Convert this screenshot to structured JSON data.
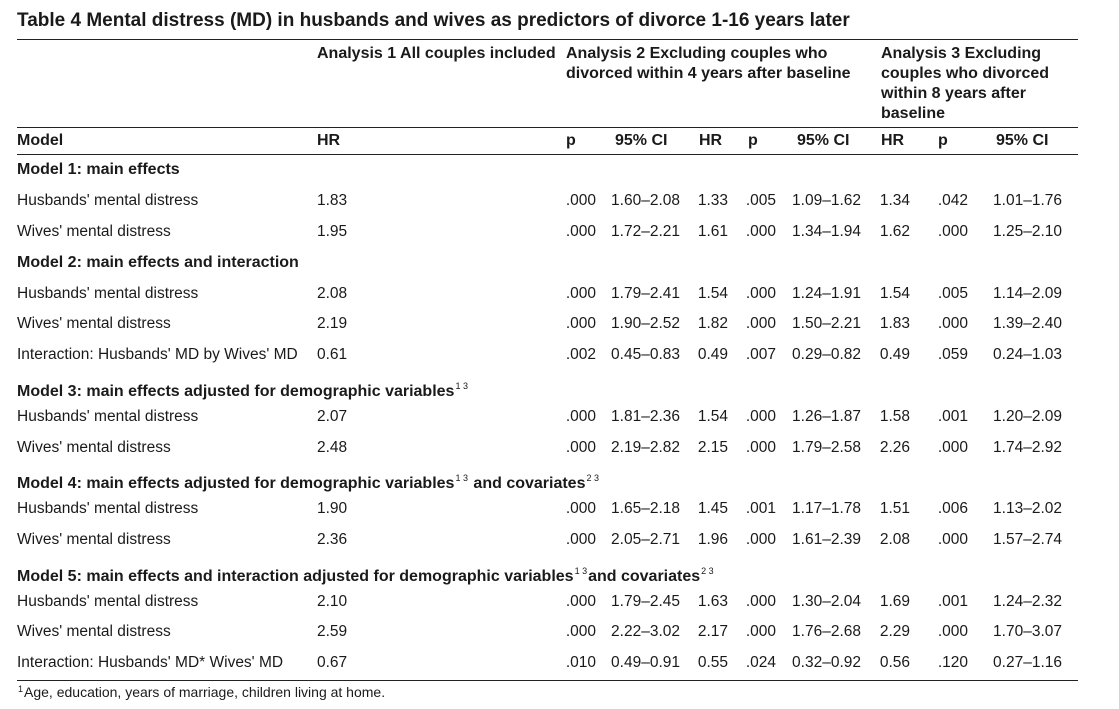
{
  "title": "Table 4 Mental distress (MD) in husbands and wives as predictors of divorce 1-16 years later",
  "analyses": {
    "a1": "Analysis 1 All couples included",
    "a2": [
      "Analysis 2 Excluding couples who",
      "divorced within 4 years after baseline"
    ],
    "a3": [
      "Analysis 3 Excluding",
      "couples who divorced",
      "within 8 years after",
      "baseline"
    ]
  },
  "columns": {
    "model": "Model",
    "hr1": "HR",
    "p1": "p",
    "ci1": "95% CI",
    "hr2": "HR",
    "p2": "p",
    "ci2": "95% CI",
    "hr3": "HR",
    "p3": "p",
    "ci3": "95% CI"
  },
  "groups": [
    {
      "label": "Model 1: main effects"
    },
    {
      "label": "Model 2: main effects and interaction"
    },
    {
      "label": "Model 3: main effects adjusted for demographic variables",
      "sup1": "1 3"
    },
    {
      "label": "Model 4: main effects adjusted for demographic variables",
      "sup1": "1 3",
      "label2": "and covariates",
      "sup2": "2 3"
    },
    {
      "label": "Model 5: main effects and interaction adjusted for demographic variables",
      "sup1": "1 3",
      "label2": "and covariates",
      "sup2": "2 3"
    }
  ],
  "rows": [
    [
      "Husbands' mental distress",
      "1.83",
      ".000",
      "1.60–2.08",
      "1.33",
      ".005",
      "1.09–1.62",
      "1.34",
      ".042",
      "1.01–1.76"
    ],
    [
      "Wives' mental distress",
      "1.95",
      ".000",
      "1.72–2.21",
      "1.61",
      ".000",
      "1.34–1.94",
      "1.62",
      ".000",
      "1.25–2.10"
    ],
    [
      "Husbands' mental distress",
      "2.08",
      ".000",
      "1.79–2.41",
      "1.54",
      ".000",
      "1.24–1.91",
      "1.54",
      ".005",
      "1.14–2.09"
    ],
    [
      "Wives' mental distress",
      "2.19",
      ".000",
      "1.90–2.52",
      "1.82",
      ".000",
      "1.50–2.21",
      "1.83",
      ".000",
      "1.39–2.40"
    ],
    [
      "Interaction: Husbands' MD by Wives' MD",
      "0.61",
      ".002",
      "0.45–0.83",
      "0.49",
      ".007",
      "0.29–0.82",
      "0.49",
      ".059",
      "0.24–1.03"
    ],
    [
      "Husbands' mental distress",
      "2.07",
      ".000",
      "1.81–2.36",
      "1.54",
      ".000",
      "1.26–1.87",
      "1.58",
      ".001",
      "1.20–2.09"
    ],
    [
      "Wives' mental distress",
      "2.48",
      ".000",
      "2.19–2.82",
      "2.15",
      ".000",
      "1.79–2.58",
      "2.26",
      ".000",
      "1.74–2.92"
    ],
    [
      "Husbands' mental distress",
      "1.90",
      ".000",
      "1.65–2.18",
      "1.45",
      ".001",
      "1.17–1.78",
      "1.51",
      ".006",
      "1.13–2.02"
    ],
    [
      "Wives' mental distress",
      "2.36",
      ".000",
      "2.05–2.71",
      "1.96",
      ".000",
      "1.61–2.39",
      "2.08",
      ".000",
      "1.57–2.74"
    ],
    [
      "Husbands' mental distress",
      "2.10",
      ".000",
      "1.79–2.45",
      "1.63",
      ".000",
      "1.30–2.04",
      "1.69",
      ".001",
      "1.24–2.32"
    ],
    [
      "Wives' mental distress",
      "2.59",
      ".000",
      "2.22–3.02",
      "2.17",
      ".000",
      "1.76–2.68",
      "2.29",
      ".000",
      "1.70–3.07"
    ],
    [
      "Interaction: Husbands' MD* Wives' MD",
      "0.67",
      ".010",
      "0.49–0.91",
      "0.55",
      ".024",
      "0.32–0.92",
      "0.56",
      ".120",
      "0.27–1.16"
    ]
  ],
  "footnotes": [
    {
      "sup": "1",
      "text": "Age, education, years of marriage, children living at home."
    }
  ]
}
